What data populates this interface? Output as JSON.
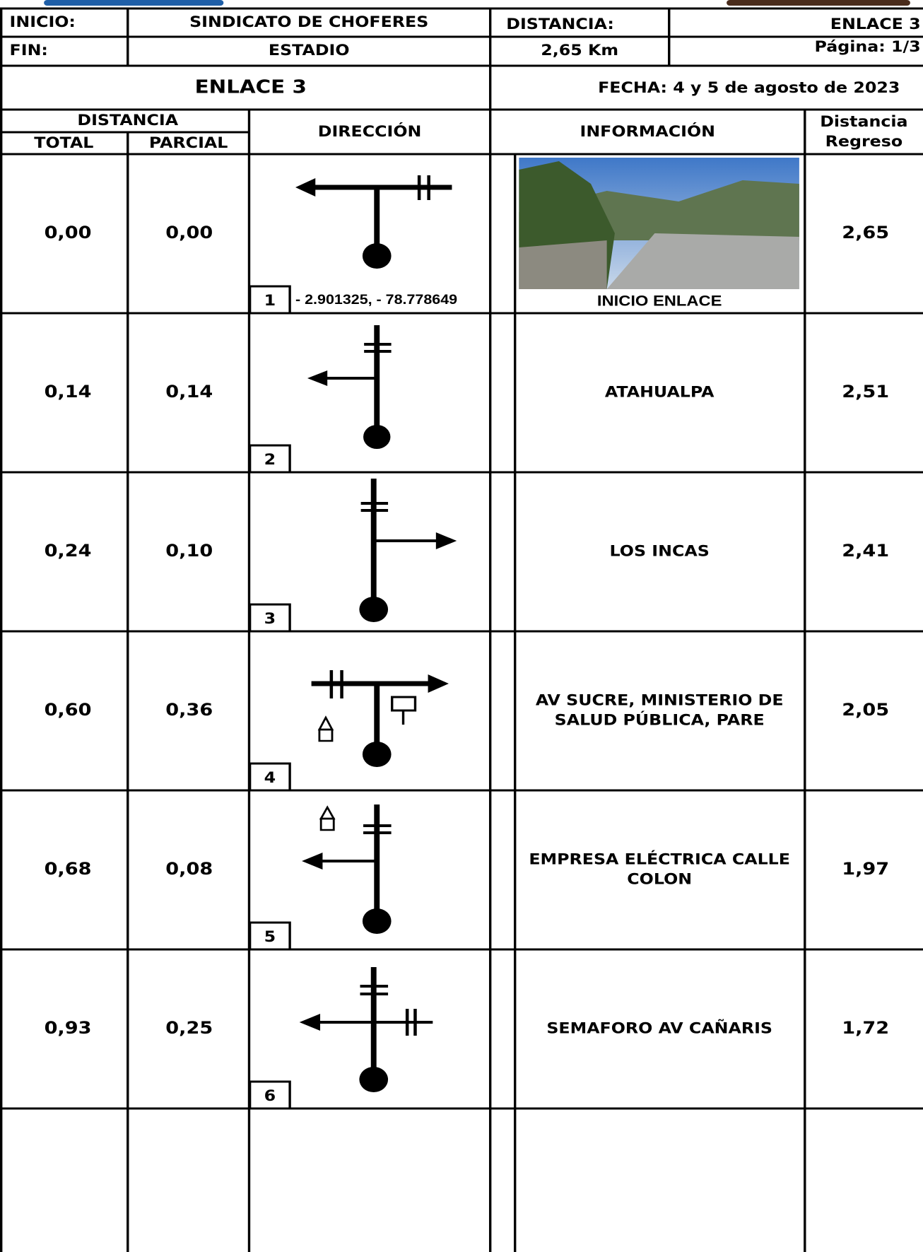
{
  "header": {
    "inicio_label": "INICIO:",
    "inicio": "SINDICATO DE CHOFERES",
    "fin_label": "FIN:",
    "fin": "ESTADIO",
    "distancia_label": "DISTANCIA:",
    "distancia": "2,65 Km",
    "enlace": "ENLACE 3",
    "pagina": "Página: 1/3",
    "title": "ENLACE 3",
    "fecha": "FECHA: 4 y 5 de agosto de 2023"
  },
  "columns": {
    "distancia": "DISTANCIA",
    "total": "TOTAL",
    "parcial": "PARCIAL",
    "direccion": "DIRECCIÓN",
    "informacion": "INFORMACIÓN",
    "regreso": [
      "Distancia",
      "Regreso"
    ]
  },
  "rows": [
    {
      "total": "0,00",
      "parcial": "0,00",
      "step": "1",
      "coords": "- 2.901325,  - 78.778649",
      "info": [
        "INICIO ENLACE"
      ],
      "regreso": "2,65"
    },
    {
      "total": "0,14",
      "parcial": "0,14",
      "step": "2",
      "info": [
        "ATAHUALPA"
      ],
      "regreso": "2,51"
    },
    {
      "total": "0,24",
      "parcial": "0,10",
      "step": "3",
      "info": [
        "LOS INCAS"
      ],
      "regreso": "2,41"
    },
    {
      "total": "0,60",
      "parcial": "0,36",
      "step": "4",
      "info": [
        "AV SUCRE, MINISTERIO DE",
        "SALUD PÚBLICA, PARE"
      ],
      "regreso": "2,05"
    },
    {
      "total": "0,68",
      "parcial": "0,08",
      "step": "5",
      "info": [
        "EMPRESA ELÉCTRICA CALLE",
        "COLON"
      ],
      "regreso": "1,97"
    },
    {
      "total": "0,93",
      "parcial": "0,25",
      "step": "6",
      "info": [
        "SEMAFORO AV CAÑARIS"
      ],
      "regreso": "1,72"
    }
  ]
}
